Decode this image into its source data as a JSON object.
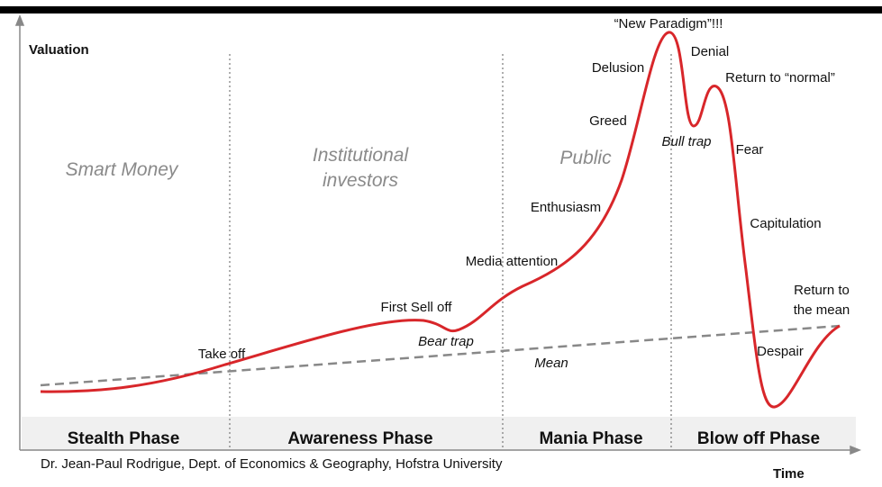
{
  "axes": {
    "y_label": "Valuation",
    "x_label": "Time"
  },
  "credit": "Dr. Jean-Paul Rodrigue, Dept. of Economics & Geography, Hofstra University",
  "phases": [
    "Stealth Phase",
    "Awareness Phase",
    "Mania Phase",
    "Blow off Phase"
  ],
  "participants": [
    "Smart Money",
    "Institutional",
    "investors",
    "Public"
  ],
  "stages": [
    "Take off",
    "First Sell off",
    "Bear trap",
    "Mean",
    "Media attention",
    "Enthusiasm",
    "Greed",
    "Delusion",
    "“New Paradigm”!!!",
    "Denial",
    "Return to “normal”",
    "Bull trap",
    "Fear",
    "Capitulation",
    "Return to",
    "the mean",
    "Despair"
  ]
}
